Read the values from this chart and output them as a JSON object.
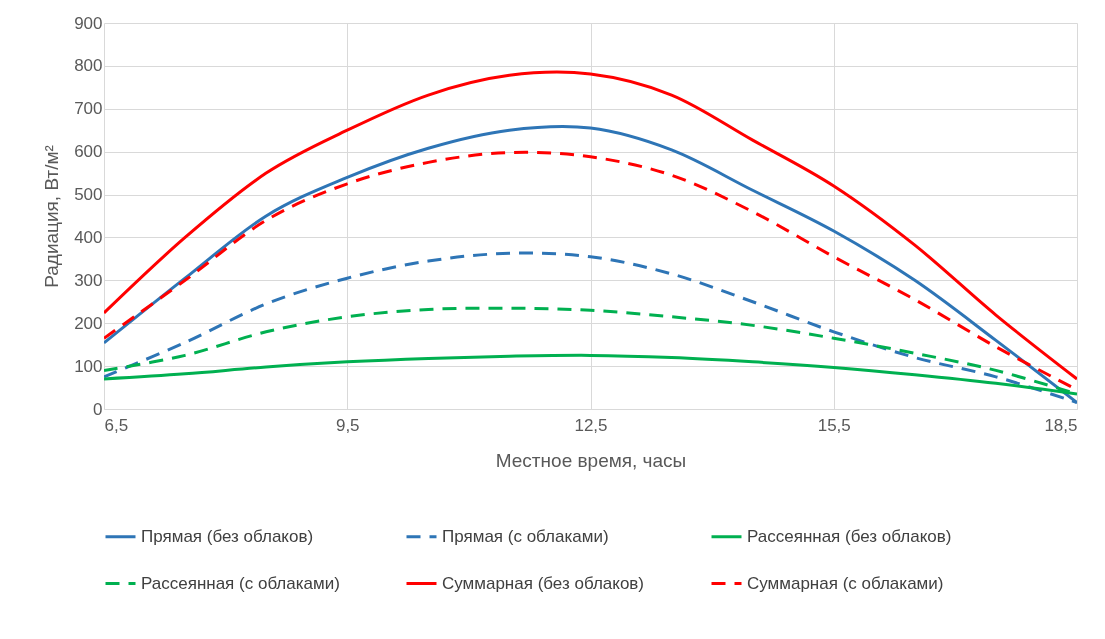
{
  "chart_data": {
    "type": "line",
    "xlabel": "Местное время, часы",
    "ylabel": "Радиация, Вт/м²",
    "x": [
      6.5,
      7.5,
      8.5,
      9.5,
      10.5,
      11.5,
      12.5,
      13.5,
      14.5,
      15.5,
      16.5,
      17.5,
      18.5
    ],
    "xlim": [
      6.5,
      18.5
    ],
    "xticks": [
      {
        "value": 6.5,
        "label": "6,5"
      },
      {
        "value": 9.5,
        "label": "9,5"
      },
      {
        "value": 12.5,
        "label": "12,5"
      },
      {
        "value": 15.5,
        "label": "15,5"
      },
      {
        "value": 18.5,
        "label": "18,5"
      }
    ],
    "ylim": [
      0,
      900
    ],
    "yticks": [
      0,
      100,
      200,
      300,
      400,
      500,
      600,
      700,
      800,
      900
    ],
    "grid": true,
    "legend": "bottom",
    "marker": "none",
    "series": [
      {
        "name": "Прямая (без облаков)",
        "color": "#2e75b6",
        "line_style": "solid",
        "values": [
          154,
          305,
          450,
          540,
          608,
          650,
          655,
          604,
          510,
          415,
          300,
          160,
          15
        ]
      },
      {
        "name": "Прямая (с облаками)",
        "color": "#2e75b6",
        "line_style": "dashed",
        "values": [
          75,
          155,
          245,
          305,
          345,
          363,
          355,
          315,
          250,
          180,
          120,
          75,
          15
        ]
      },
      {
        "name": "Рассеянная (без облаков)",
        "color": "#00b050",
        "line_style": "solid",
        "values": [
          70,
          82,
          98,
          110,
          118,
          123,
          125,
          120,
          110,
          97,
          80,
          60,
          35
        ]
      },
      {
        "name": "Рассеянная (с облаками)",
        "color": "#00b050",
        "line_style": "dashed",
        "values": [
          90,
          125,
          180,
          215,
          232,
          235,
          230,
          215,
          195,
          165,
          130,
          90,
          35
        ]
      },
      {
        "name": "Суммарная (без облаков)",
        "color": "#ff0000",
        "line_style": "solid",
        "values": [
          224,
          400,
          550,
          650,
          732,
          778,
          781,
          732,
          627,
          520,
          382,
          219,
          70
        ]
      },
      {
        "name": "Суммарная (с облаками)",
        "color": "#ff0000",
        "line_style": "dashed",
        "values": [
          165,
          300,
          440,
          525,
          575,
          598,
          588,
          545,
          460,
          355,
          255,
          145,
          45
        ]
      }
    ]
  }
}
